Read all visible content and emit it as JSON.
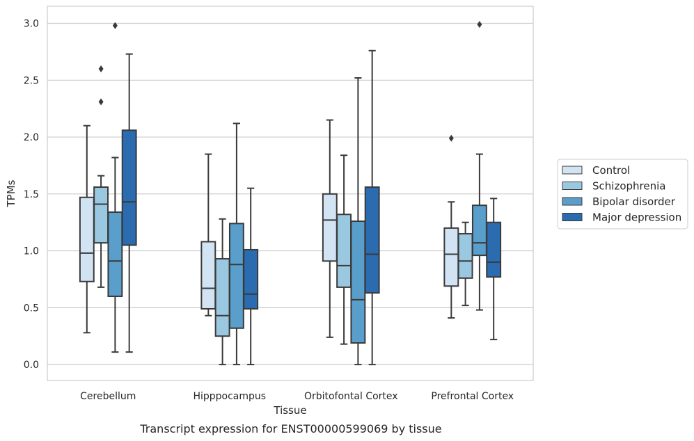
{
  "chart_data": {
    "type": "box",
    "title": "",
    "caption": "Transcript expression for ENST00000599069 by tissue",
    "xlabel": "Tissue",
    "ylabel": "TPMs",
    "ylim": [
      -0.14,
      3.15
    ],
    "yticks": [
      "0.0",
      "0.5",
      "1.0",
      "1.5",
      "2.0",
      "2.5",
      "3.0"
    ],
    "grid": true,
    "legend_position": "right",
    "categories": [
      "Cerebellum",
      "Hipppocampus",
      "Orbitofontal Cortex",
      "Prefrontal Cortex"
    ],
    "series": [
      {
        "name": "Control",
        "color": "#d2e3f3",
        "boxes": [
          {
            "whisker_low": 0.28,
            "q1": 0.73,
            "median": 0.98,
            "q3": 1.47,
            "whisker_high": 2.1,
            "outliers": []
          },
          {
            "whisker_low": 0.43,
            "q1": 0.49,
            "median": 0.67,
            "q3": 1.08,
            "whisker_high": 1.85,
            "outliers": []
          },
          {
            "whisker_low": 0.24,
            "q1": 0.91,
            "median": 1.27,
            "q3": 1.5,
            "whisker_high": 2.15,
            "outliers": []
          },
          {
            "whisker_low": 0.41,
            "q1": 0.69,
            "median": 0.97,
            "q3": 1.2,
            "whisker_high": 1.43,
            "outliers": [
              1.99
            ]
          }
        ]
      },
      {
        "name": "Schizophrenia",
        "color": "#9ac8e0",
        "boxes": [
          {
            "whisker_low": 0.68,
            "q1": 1.07,
            "median": 1.41,
            "q3": 1.56,
            "whisker_high": 1.66,
            "outliers": [
              2.31,
              2.6
            ]
          },
          {
            "whisker_low": 0.0,
            "q1": 0.25,
            "median": 0.43,
            "q3": 0.93,
            "whisker_high": 1.28,
            "outliers": []
          },
          {
            "whisker_low": 0.18,
            "q1": 0.68,
            "median": 0.87,
            "q3": 1.32,
            "whisker_high": 1.84,
            "outliers": []
          },
          {
            "whisker_low": 0.52,
            "q1": 0.76,
            "median": 0.91,
            "q3": 1.15,
            "whisker_high": 1.25,
            "outliers": []
          }
        ]
      },
      {
        "name": "Bipolar disorder",
        "color": "#5a9ecb",
        "boxes": [
          {
            "whisker_low": 0.11,
            "q1": 0.6,
            "median": 0.91,
            "q3": 1.34,
            "whisker_high": 1.82,
            "outliers": [
              2.98
            ]
          },
          {
            "whisker_low": 0.0,
            "q1": 0.32,
            "median": 0.88,
            "q3": 1.24,
            "whisker_high": 2.12,
            "outliers": []
          },
          {
            "whisker_low": 0.0,
            "q1": 0.19,
            "median": 0.57,
            "q3": 1.26,
            "whisker_high": 2.52,
            "outliers": []
          },
          {
            "whisker_low": 0.48,
            "q1": 0.96,
            "median": 1.07,
            "q3": 1.4,
            "whisker_high": 1.85,
            "outliers": [
              2.99
            ]
          }
        ]
      },
      {
        "name": "Major depression",
        "color": "#2b6cb0",
        "boxes": [
          {
            "whisker_low": 0.11,
            "q1": 1.05,
            "median": 1.43,
            "q3": 2.06,
            "whisker_high": 2.73,
            "outliers": []
          },
          {
            "whisker_low": 0.0,
            "q1": 0.49,
            "median": 0.62,
            "q3": 1.01,
            "whisker_high": 1.55,
            "outliers": []
          },
          {
            "whisker_low": 0.0,
            "q1": 0.63,
            "median": 0.97,
            "q3": 1.56,
            "whisker_high": 2.76,
            "outliers": []
          },
          {
            "whisker_low": 0.22,
            "q1": 0.77,
            "median": 0.9,
            "q3": 1.25,
            "whisker_high": 1.46,
            "outliers": []
          }
        ]
      }
    ]
  }
}
